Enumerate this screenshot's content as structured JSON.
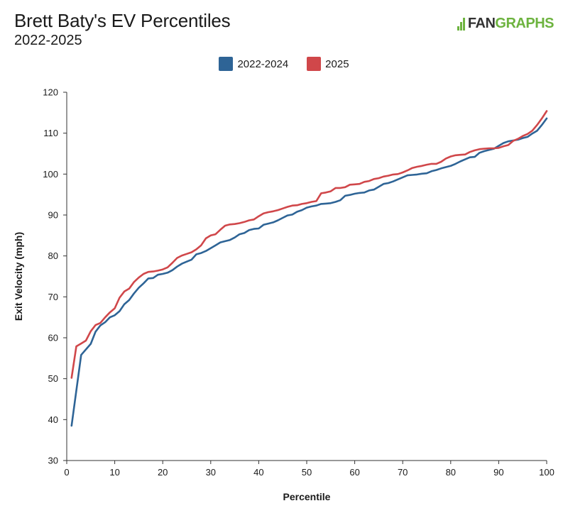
{
  "header": {
    "title": "Brett Baty's EV Percentiles",
    "subtitle": "2022-2025",
    "logo_fan": "FAN",
    "logo_graphs": "GRAPHS"
  },
  "colors": {
    "series_2022_2024": "#2e6496",
    "series_2025": "#d0474a",
    "brand_green": "#6db33f"
  },
  "chart_data": {
    "type": "line",
    "title": "Brett Baty's EV Percentiles",
    "subtitle": "2022-2025",
    "xlabel": "Percentile",
    "ylabel": "Exit Velocity (mph)",
    "xlim": [
      0,
      100
    ],
    "ylim": [
      30,
      120
    ],
    "xticks": [
      0,
      10,
      20,
      30,
      40,
      50,
      60,
      70,
      80,
      90,
      100
    ],
    "yticks": [
      30,
      40,
      50,
      60,
      70,
      80,
      90,
      100,
      110,
      120
    ],
    "grid": false,
    "legend_position": "top-center",
    "series": [
      {
        "name": "2022-2024",
        "color": "#2e6496",
        "x": [
          1,
          3,
          5,
          6,
          7,
          8,
          9,
          10,
          11,
          12,
          13,
          14,
          15,
          16,
          17,
          18,
          19,
          20,
          21,
          22,
          23,
          24,
          25,
          26,
          27,
          28,
          29,
          30,
          31,
          32,
          33,
          34,
          35,
          36,
          37,
          38,
          39,
          40,
          41,
          42,
          43,
          44,
          45,
          46,
          47,
          48,
          49,
          50,
          51,
          52,
          53,
          54,
          55,
          56,
          57,
          58,
          59,
          60,
          61,
          62,
          63,
          64,
          65,
          66,
          67,
          68,
          69,
          70,
          71,
          72,
          73,
          74,
          75,
          76,
          77,
          78,
          79,
          80,
          81,
          82,
          83,
          84,
          85,
          86,
          87,
          88,
          89,
          90,
          91,
          92,
          93,
          94,
          95,
          96,
          97,
          98,
          99,
          100
        ],
        "y": [
          38.5,
          55.8,
          58.5,
          61.5,
          63,
          63.8,
          65,
          65.5,
          66.5,
          68.2,
          69.2,
          70.8,
          72.2,
          73.3,
          74.5,
          74.6,
          75.4,
          75.6,
          75.9,
          76.5,
          77.4,
          78.1,
          78.6,
          79.1,
          80.4,
          80.7,
          81.2,
          81.9,
          82.6,
          83.3,
          83.6,
          83.9,
          84.5,
          85.3,
          85.6,
          86.3,
          86.6,
          86.7,
          87.6,
          87.9,
          88.2,
          88.7,
          89.3,
          89.9,
          90.1,
          90.8,
          91.2,
          91.8,
          92.1,
          92.3,
          92.7,
          92.8,
          92.9,
          93.2,
          93.6,
          94.7,
          94.9,
          95.2,
          95.4,
          95.5,
          96.0,
          96.2,
          96.9,
          97.6,
          97.8,
          98.2,
          98.7,
          99.2,
          99.7,
          99.8,
          99.9,
          100.1,
          100.2,
          100.7,
          101.0,
          101.4,
          101.7,
          102.0,
          102.5,
          103.1,
          103.6,
          104.1,
          104.2,
          105.2,
          105.6,
          105.9,
          106.2,
          106.9,
          107.6,
          108.0,
          108.2,
          108.4,
          108.8,
          109.1,
          109.9,
          110.6,
          112.0,
          113.6
        ]
      },
      {
        "name": "2025",
        "color": "#d0474a",
        "x": [
          1,
          2,
          3,
          4,
          5,
          6,
          7,
          8,
          9,
          10,
          11,
          12,
          13,
          14,
          15,
          16,
          17,
          18,
          19,
          20,
          21,
          22,
          23,
          24,
          25,
          26,
          27,
          28,
          29,
          30,
          31,
          32,
          33,
          34,
          35,
          36,
          37,
          38,
          39,
          40,
          41,
          42,
          43,
          44,
          45,
          46,
          47,
          48,
          49,
          50,
          51,
          52,
          53,
          54,
          55,
          56,
          57,
          58,
          59,
          60,
          61,
          62,
          63,
          64,
          65,
          66,
          67,
          68,
          69,
          70,
          71,
          72,
          73,
          74,
          75,
          76,
          77,
          78,
          79,
          80,
          81,
          82,
          83,
          84,
          85,
          86,
          87,
          88,
          89,
          90,
          91,
          92,
          93,
          94,
          95,
          96,
          97,
          98,
          99,
          100
        ],
        "y": [
          50.2,
          57.9,
          58.6,
          59.3,
          61.6,
          63.1,
          63.6,
          65.0,
          66.2,
          67.2,
          69.8,
          71.3,
          72.0,
          73.6,
          74.7,
          75.6,
          76.1,
          76.2,
          76.4,
          76.7,
          77.2,
          78.3,
          79.5,
          80.1,
          80.5,
          80.9,
          81.6,
          82.6,
          84.3,
          85.0,
          85.3,
          86.4,
          87.4,
          87.7,
          87.8,
          88.0,
          88.3,
          88.7,
          88.9,
          89.7,
          90.4,
          90.7,
          90.9,
          91.2,
          91.6,
          92.0,
          92.3,
          92.4,
          92.7,
          92.9,
          93.2,
          93.4,
          95.3,
          95.5,
          95.8,
          96.6,
          96.6,
          96.8,
          97.4,
          97.5,
          97.6,
          98.1,
          98.3,
          98.8,
          99.0,
          99.4,
          99.6,
          99.9,
          100.0,
          100.4,
          100.9,
          101.5,
          101.8,
          102.0,
          102.3,
          102.5,
          102.5,
          103.0,
          103.8,
          104.3,
          104.6,
          104.7,
          104.8,
          105.4,
          105.8,
          106.1,
          106.2,
          106.3,
          106.3,
          106.4,
          106.8,
          107.1,
          108.1,
          108.6,
          109.3,
          109.8,
          110.6,
          112.0,
          113.6,
          115.4
        ]
      }
    ]
  }
}
